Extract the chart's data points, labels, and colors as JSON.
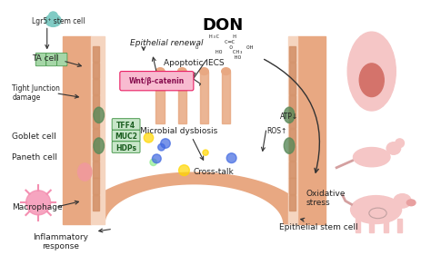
{
  "title": "DON",
  "bg_color": "#ffffff",
  "figsize": [
    4.74,
    2.81
  ],
  "dpi": 100,
  "labels": {
    "lgr5": "Lgr5⁺ stem cell",
    "ta_cell": "TA cell",
    "tight_junction": "Tight Junction\ndamage",
    "epithelial_renewal": "Epithelial renewal",
    "wnt": "Wnt/β-catenin",
    "apoptotic": "Apoptotic IECS",
    "tff4": "TFF4",
    "muc2": "MUC2",
    "hdps": "HDPs",
    "microbial": "Microbial dysbiosis",
    "cross_talk": "Cross-talk",
    "ros": "ROS↑",
    "atp": "ATP↓",
    "goblet": "Goblet cell",
    "paneth": "Paneth cell",
    "macrophage": "Macrophage",
    "inflammatory": "Inflammatory\nresponse",
    "oxidative": "Oxidative\nstress",
    "epithelial_stem": "Epithelial stem cell"
  },
  "colors": {
    "intestine_fill": "#e8a882",
    "intestine_inner": "#f5d5c0",
    "goblet_green": "#5a8a5a",
    "label_wnt": "#f48fb1",
    "label_tff4": "#66bb6a",
    "label_muc2": "#66bb6a",
    "label_hdps": "#66bb6a",
    "arrow_color": "#333333",
    "inhibit_color": "#333333",
    "don_title": "#000000",
    "body_fill": "#f5c6c6",
    "rat_fill": "#f5c6c6",
    "pig_fill": "#f5c6c6"
  }
}
